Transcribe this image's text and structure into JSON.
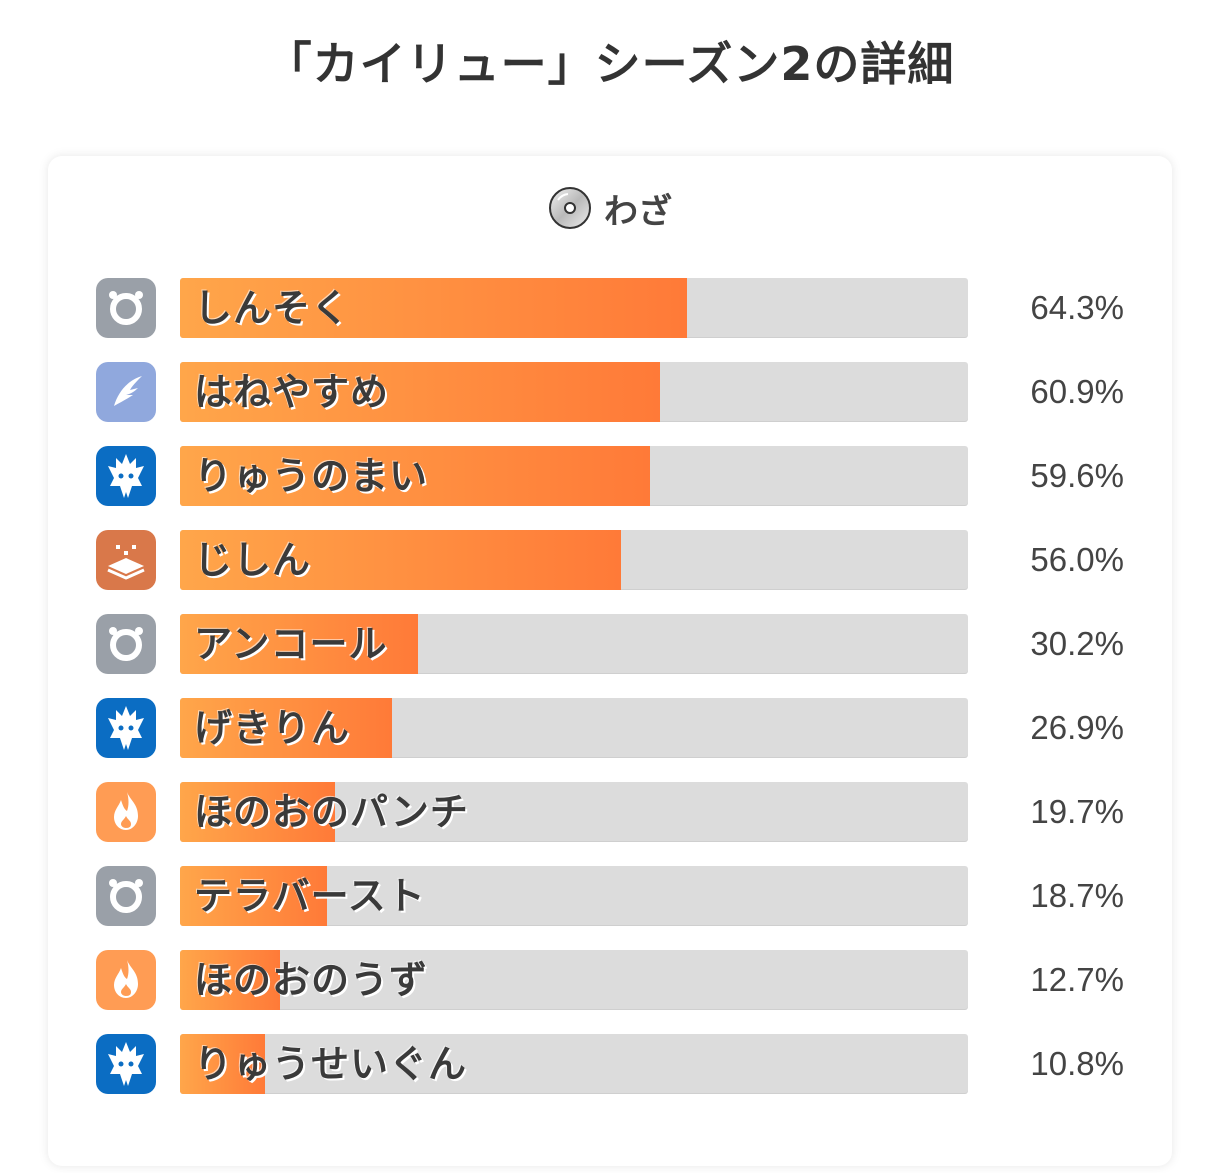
{
  "page": {
    "title": "「カイリュー」シーズン2の詳細"
  },
  "section": {
    "title": "わざ",
    "icon": "disc-icon"
  },
  "types": {
    "normal": {
      "color": "#9aa0a8",
      "icon": "normal-type-icon"
    },
    "flying": {
      "color": "#90a8dd",
      "icon": "flying-type-icon"
    },
    "dragon": {
      "color": "#0b6dc3",
      "icon": "dragon-type-icon"
    },
    "ground": {
      "color": "#d9784a",
      "icon": "ground-type-icon"
    },
    "fire": {
      "color": "#ff9c54",
      "icon": "fire-type-icon"
    }
  },
  "chart_data": {
    "type": "bar",
    "orientation": "horizontal",
    "unit": "%",
    "xlim": [
      0,
      100
    ],
    "categories": [
      "しんそく",
      "はねやすめ",
      "りゅうのまい",
      "じしん",
      "アンコール",
      "げきりん",
      "ほのおのパンチ",
      "テラバースト",
      "ほのおのうず",
      "りゅうせいぐん"
    ],
    "values": [
      64.3,
      60.9,
      59.6,
      56.0,
      30.2,
      26.9,
      19.7,
      18.7,
      12.7,
      10.8
    ],
    "value_labels": [
      "64.3%",
      "60.9%",
      "59.6%",
      "56.0%",
      "30.2%",
      "26.9%",
      "19.7%",
      "18.7%",
      "12.7%",
      "10.8%"
    ],
    "move_types": [
      "normal",
      "flying",
      "dragon",
      "ground",
      "normal",
      "dragon",
      "fire",
      "normal",
      "fire",
      "dragon"
    ],
    "bar_color": "#ff8a3d",
    "track_color": "#dcdcdc"
  }
}
